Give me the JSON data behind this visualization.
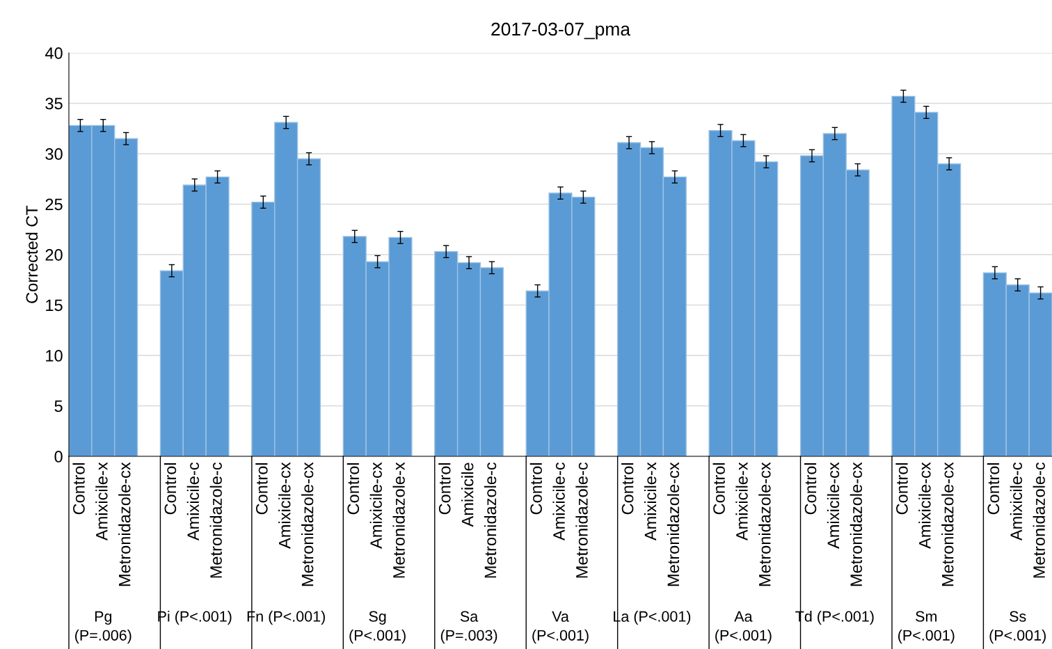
{
  "chart_data": {
    "type": "bar",
    "title": "2017-03-07_pma",
    "ylabel": "Corrected CT",
    "categories": [
      "Control",
      "Amixicile-x",
      "Metronidazole-cx",
      null,
      "Control",
      "Amixicile-c",
      "Metronidazole-c",
      null,
      "Control",
      "Amixicile-cx",
      "Metronidazole-cx",
      null,
      "Control",
      "Amixicile-cx",
      "Metronidazole-x",
      null,
      "Control",
      "Amixicile",
      "Metronidazole-c",
      null,
      "Control",
      "Amixicile-c",
      "Metronidazole-c",
      null,
      "Control",
      "Amixicile-x",
      "Metronidazole-cx",
      null,
      "Control",
      "Amixicile-x",
      "Metronidazole-cx",
      null,
      "Control",
      "Amixicile-cx",
      "Metronidazole-cx",
      null,
      "Control",
      "Amixicile-cx",
      "Metronidazole-cx",
      null,
      "Control",
      "Amixicile-c",
      "Metronidazole-c"
    ],
    "values": [
      32.8,
      32.8,
      31.5,
      null,
      18.4,
      26.9,
      27.7,
      null,
      25.2,
      33.1,
      29.5,
      null,
      21.8,
      19.3,
      21.7,
      null,
      20.3,
      19.2,
      18.7,
      null,
      16.4,
      26.1,
      25.7,
      null,
      31.1,
      30.6,
      27.7,
      null,
      32.3,
      31.3,
      29.2,
      null,
      29.8,
      32.0,
      28.4,
      null,
      35.7,
      34.1,
      29.0,
      null,
      18.2,
      17.0,
      16.2
    ],
    "errors": [
      0.6,
      0.6,
      0.6,
      null,
      0.6,
      0.6,
      0.6,
      null,
      0.6,
      0.6,
      0.6,
      null,
      0.6,
      0.6,
      0.6,
      null,
      0.6,
      0.6,
      0.6,
      null,
      0.6,
      0.6,
      0.6,
      null,
      0.6,
      0.6,
      0.6,
      null,
      0.6,
      0.6,
      0.6,
      null,
      0.6,
      0.6,
      0.6,
      null,
      0.6,
      0.6,
      0.6,
      null,
      0.6,
      0.6,
      0.6
    ],
    "color": "#5b9bd5",
    "annotations": [
      "Pg\n(P=.006)",
      "Pi (P<.001)",
      "Fn (P<.001)",
      "Sg\n(P<.001)",
      "Sa\n(P=.003)",
      "Va\n(P<.001)",
      "La (P<.001)",
      "Aa\n(P<.001)",
      "Td (P<.001)",
      "Sm\n(P<.001)",
      "Ss\n(P<.001)"
    ],
    "ylim": [
      0,
      40
    ],
    "yticks": [
      0,
      5,
      10,
      15,
      20,
      25,
      30,
      35,
      40
    ],
    "grid": "y"
  }
}
